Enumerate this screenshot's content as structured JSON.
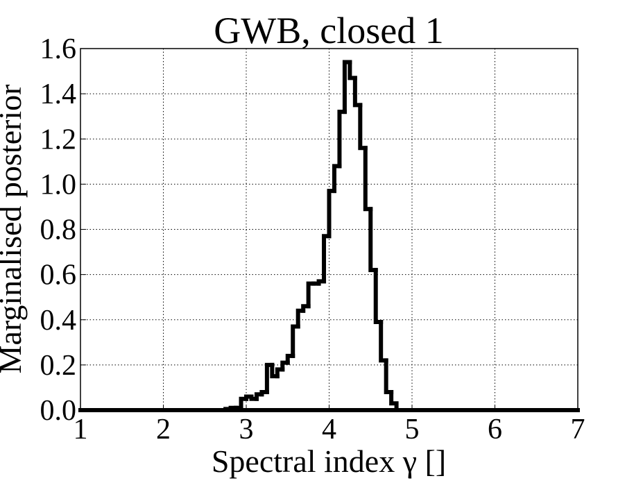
{
  "chart_data": {
    "type": "histogram",
    "title": "GWB, closed 1",
    "x_label": "Spectral index γ []",
    "y_label": "Marginalised posterior",
    "bins": [
      2.75,
      2.8125,
      2.875,
      2.9375,
      3.0,
      3.0625,
      3.125,
      3.1875,
      3.25,
      3.3125,
      3.375,
      3.4375,
      3.5,
      3.5625,
      3.625,
      3.6875,
      3.75,
      3.8125,
      3.875,
      3.9375,
      4.0,
      4.0625,
      4.125,
      4.1875,
      4.25,
      4.3125,
      4.375,
      4.4375,
      4.5,
      4.5625,
      4.625,
      4.6875,
      4.75,
      4.8125
    ],
    "values": [
      0.005,
      0.01,
      0.01,
      0.05,
      0.06,
      0.05,
      0.07,
      0.08,
      0.2,
      0.15,
      0.18,
      0.21,
      0.24,
      0.37,
      0.44,
      0.46,
      0.56,
      0.56,
      0.57,
      0.77,
      0.97,
      1.08,
      1.32,
      1.54,
      1.47,
      1.35,
      1.16,
      0.89,
      0.62,
      0.39,
      0.22,
      0.08,
      0.03
    ],
    "color": "#000000",
    "xlim": [
      1,
      7
    ],
    "xticks": [
      1,
      2,
      3,
      4,
      5,
      6,
      7
    ],
    "ylim": [
      0,
      1.6
    ],
    "yticks": [
      {
        "value": 0,
        "label": "0.0"
      },
      0.2,
      0.4,
      0.6,
      0.8,
      {
        "value": 1,
        "label": "1.0"
      },
      1.2,
      1.4,
      1.6
    ],
    "grid": true
  }
}
